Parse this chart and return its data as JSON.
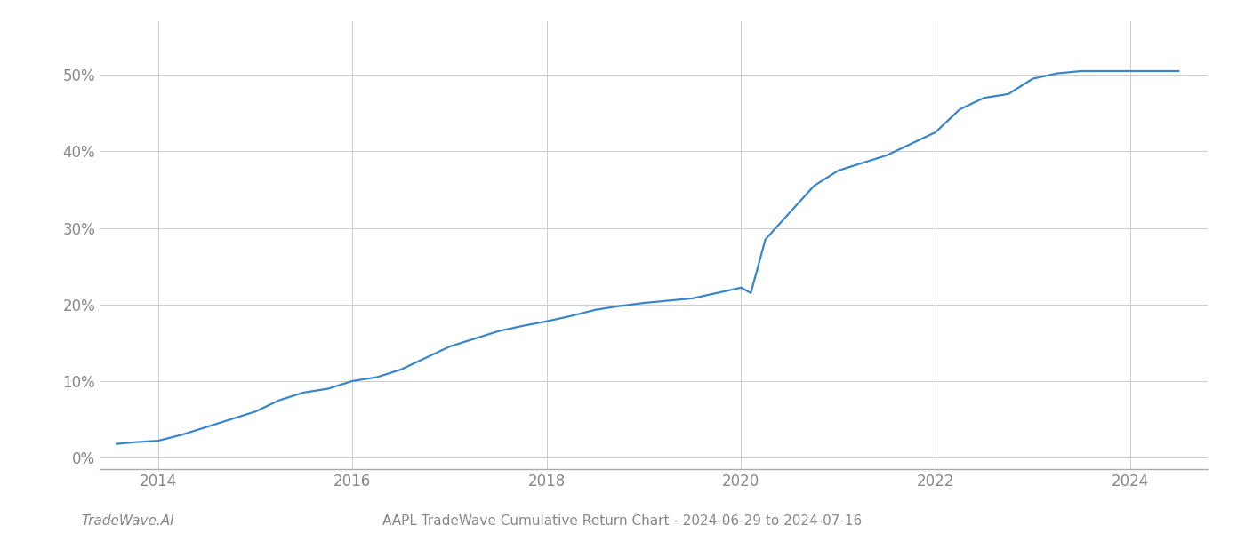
{
  "title_bottom_center": "AAPL TradeWave Cumulative Return Chart - 2024-06-29 to 2024-07-16",
  "title_bottom_left": "TradeWave.AI",
  "line_color": "#3a86c8",
  "background_color": "#ffffff",
  "grid_color": "#cccccc",
  "x_years": [
    2013.58,
    2013.75,
    2014.0,
    2014.25,
    2014.5,
    2014.75,
    2015.0,
    2015.25,
    2015.5,
    2015.75,
    2016.0,
    2016.25,
    2016.5,
    2016.75,
    2017.0,
    2017.25,
    2017.5,
    2017.75,
    2018.0,
    2018.25,
    2018.5,
    2018.75,
    2019.0,
    2019.25,
    2019.5,
    2019.75,
    2020.0,
    2020.1,
    2020.25,
    2020.5,
    2020.75,
    2021.0,
    2021.25,
    2021.5,
    2021.75,
    2022.0,
    2022.25,
    2022.5,
    2022.75,
    2023.0,
    2023.25,
    2023.5,
    2023.75,
    2024.0,
    2024.5
  ],
  "y_values": [
    0.018,
    0.02,
    0.022,
    0.03,
    0.04,
    0.05,
    0.06,
    0.075,
    0.085,
    0.09,
    0.1,
    0.105,
    0.115,
    0.13,
    0.145,
    0.155,
    0.165,
    0.172,
    0.178,
    0.185,
    0.193,
    0.198,
    0.202,
    0.205,
    0.208,
    0.215,
    0.222,
    0.215,
    0.285,
    0.32,
    0.355,
    0.375,
    0.385,
    0.395,
    0.41,
    0.425,
    0.455,
    0.47,
    0.475,
    0.495,
    0.502,
    0.505,
    0.505,
    0.505,
    0.505
  ],
  "xlim": [
    2013.4,
    2024.8
  ],
  "ylim": [
    -0.015,
    0.57
  ],
  "yticks": [
    0.0,
    0.1,
    0.2,
    0.3,
    0.4,
    0.5
  ],
  "xticks": [
    2014,
    2016,
    2018,
    2020,
    2022,
    2024
  ],
  "line_width": 1.6,
  "font_color": "#888888",
  "tick_label_color": "#888888",
  "axis_font_size": 12,
  "footer_font_size": 11,
  "spine_color": "#aaaaaa"
}
